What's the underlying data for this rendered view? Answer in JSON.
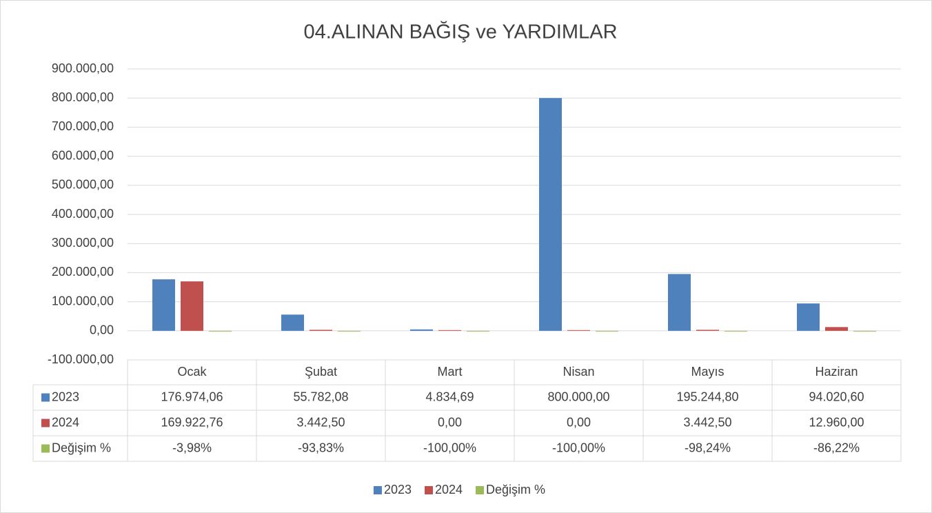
{
  "chart_data": {
    "type": "bar",
    "title": "04.ALINAN BAĞIŞ ve YARDIMLAR",
    "categories": [
      "Ocak",
      "Şubat",
      "Mart",
      "Nisan",
      "Mayıs",
      "Haziran"
    ],
    "series": [
      {
        "name": "2023",
        "color": "#4f81bd",
        "values": [
          176974.06,
          55782.08,
          4834.69,
          800000.0,
          195244.8,
          94020.6
        ],
        "value_labels": [
          "176.974,06",
          "55.782,08",
          "4.834,69",
          "800.000,00",
          "195.244,80",
          "94.020,60"
        ]
      },
      {
        "name": "2024",
        "color": "#c0504d",
        "values": [
          169922.76,
          3442.5,
          0.0,
          0.0,
          3442.5,
          12960.0
        ],
        "value_labels": [
          "169.922,76",
          "3.442,50",
          "0,00",
          "0,00",
          "3.442,50",
          "12.960,00"
        ]
      },
      {
        "name": "Değişim %",
        "color": "#9bbb59",
        "values": [
          -3.98,
          -93.83,
          -100.0,
          -100.0,
          -98.24,
          -86.22
        ],
        "value_labels": [
          "-3,98%",
          "-93,83%",
          "-100,00%",
          "-100,00%",
          "-98,24%",
          "-86,22%"
        ]
      }
    ],
    "ylim": [
      -100000,
      900000
    ],
    "yticks": [
      {
        "value": -100000,
        "label": "-100.000,00"
      },
      {
        "value": 0,
        "label": "0,00"
      },
      {
        "value": 100000,
        "label": "100.000,00"
      },
      {
        "value": 200000,
        "label": "200.000,00"
      },
      {
        "value": 300000,
        "label": "300.000,00"
      },
      {
        "value": 400000,
        "label": "400.000,00"
      },
      {
        "value": 500000,
        "label": "500.000,00"
      },
      {
        "value": 600000,
        "label": "600.000,00"
      },
      {
        "value": 700000,
        "label": "700.000,00"
      },
      {
        "value": 800000,
        "label": "800.000,00"
      },
      {
        "value": 900000,
        "label": "900.000,00"
      }
    ],
    "grid": true,
    "legend": "bottom"
  }
}
